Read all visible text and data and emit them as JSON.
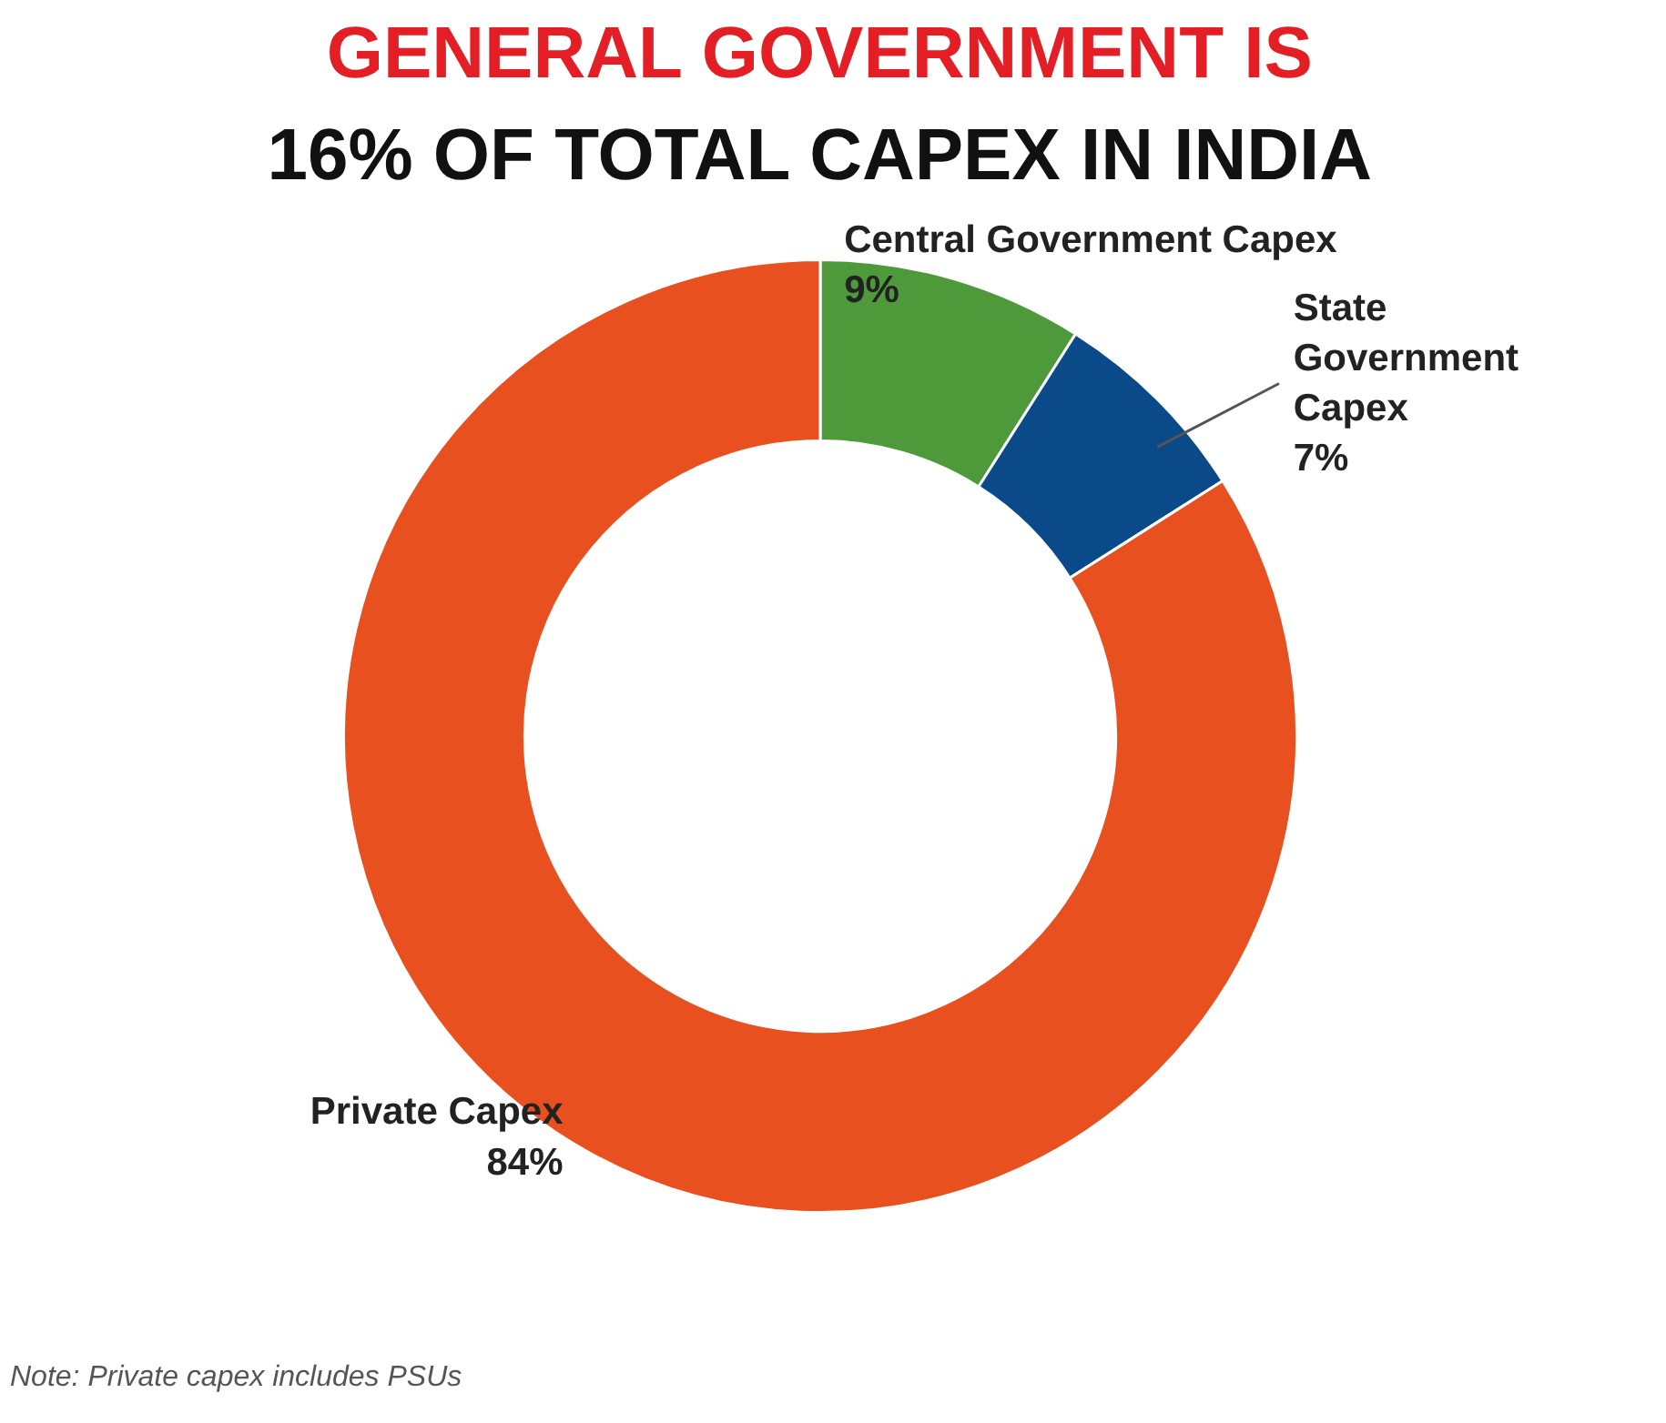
{
  "chart_data": {
    "type": "donut",
    "title": "GENERAL GOVERNMENT IS",
    "subtitle": "16% OF TOTAL CAPEX IN INDIA",
    "categories": [
      "Central Government Capex",
      "State Government Capex",
      "Private Capex"
    ],
    "values": [
      9,
      7,
      84
    ],
    "colors": [
      "#4e9a3b",
      "#0b4a88",
      "#e8501f"
    ],
    "value_labels": [
      "9%",
      "7%",
      "84%"
    ],
    "annotations": [
      "Note: Private capex includes PSUs"
    ]
  }
}
